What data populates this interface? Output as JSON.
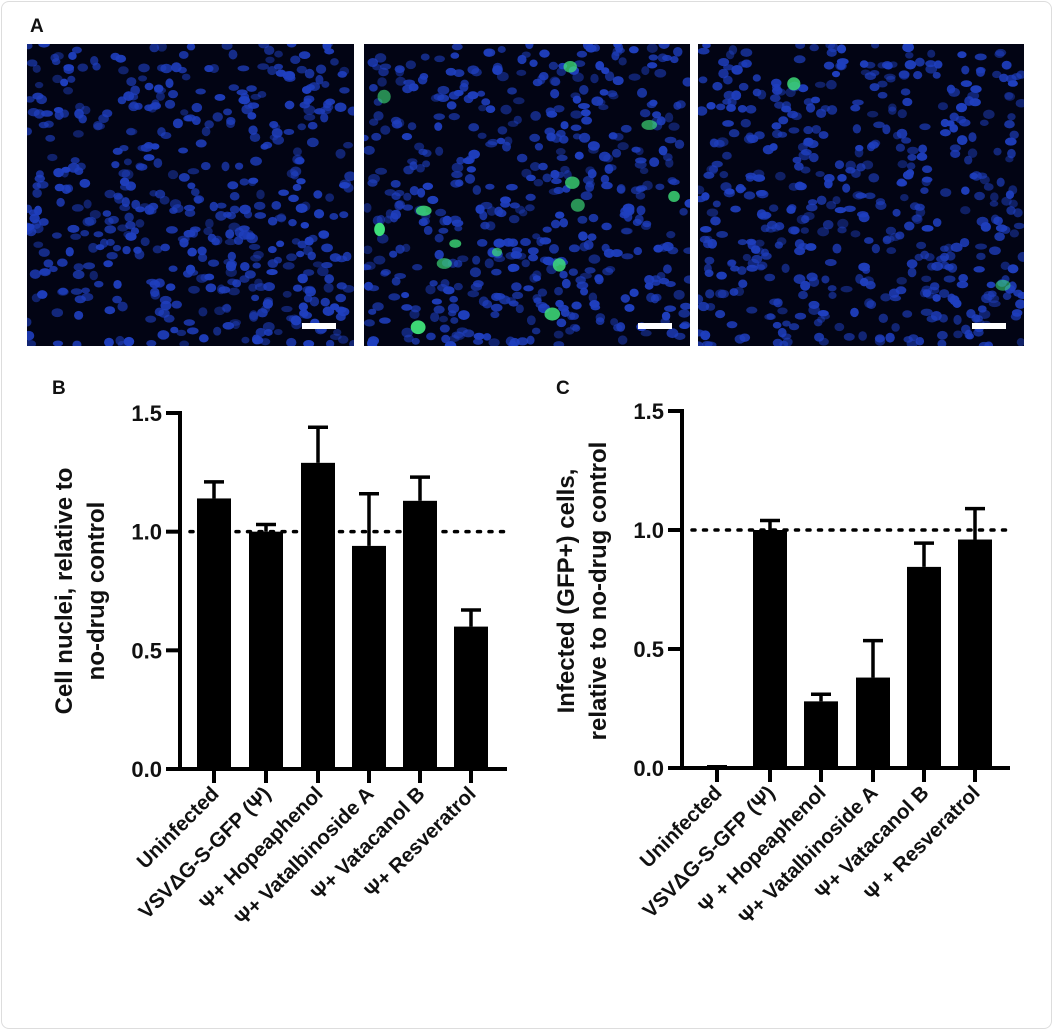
{
  "figure": {
    "panel_labels": [
      "A",
      "B",
      "C"
    ],
    "micrographs": [
      {
        "green_cells": false
      },
      {
        "green_cells": true
      },
      {
        "green_cells": "sparse"
      }
    ],
    "colors": {
      "nuclei": "#1f3fbf",
      "gfp": "#3fe07a",
      "background": "#020414",
      "bars": "#000000"
    }
  },
  "chart_data": [
    {
      "panel": "B",
      "type": "bar",
      "ylabel": [
        "Cell nuclei, relative to",
        "no-drug control"
      ],
      "ylim": [
        0,
        1.5
      ],
      "yticks": [
        "0.0",
        "0.5",
        "1.0",
        "1.5"
      ],
      "reference_line": 1.0,
      "categories": [
        "Uninfected",
        "VSVΔG-S-GFP (Ψ)",
        "Ψ+ Hopeaphenol",
        "Ψ+ Vatalbinoside A",
        "Ψ+ Vatacanol B",
        "Ψ+ Resveratrol"
      ],
      "values": [
        1.14,
        1.0,
        1.29,
        0.94,
        1.13,
        0.6
      ],
      "error_upper": [
        1.21,
        1.03,
        1.44,
        1.16,
        1.23,
        0.67
      ]
    },
    {
      "panel": "C",
      "type": "bar",
      "ylabel": [
        "Infected (GFP+) cells,",
        "relative to no-drug control"
      ],
      "ylim": [
        0,
        1.5
      ],
      "yticks": [
        "0.0",
        "0.5",
        "1.0",
        "1.5"
      ],
      "reference_line": 1.0,
      "categories": [
        "Uninfected",
        "VSVΔG-S-GFP (Ψ)",
        "Ψ + Hopeaphenol",
        "Ψ+ Vatalbinoside A",
        "Ψ+ Vatacanol B",
        "Ψ + Resveratrol"
      ],
      "values": [
        0.005,
        1.0,
        0.28,
        0.38,
        0.845,
        0.96
      ],
      "error_upper": [
        0.005,
        1.04,
        0.31,
        0.535,
        0.945,
        1.09
      ]
    }
  ]
}
